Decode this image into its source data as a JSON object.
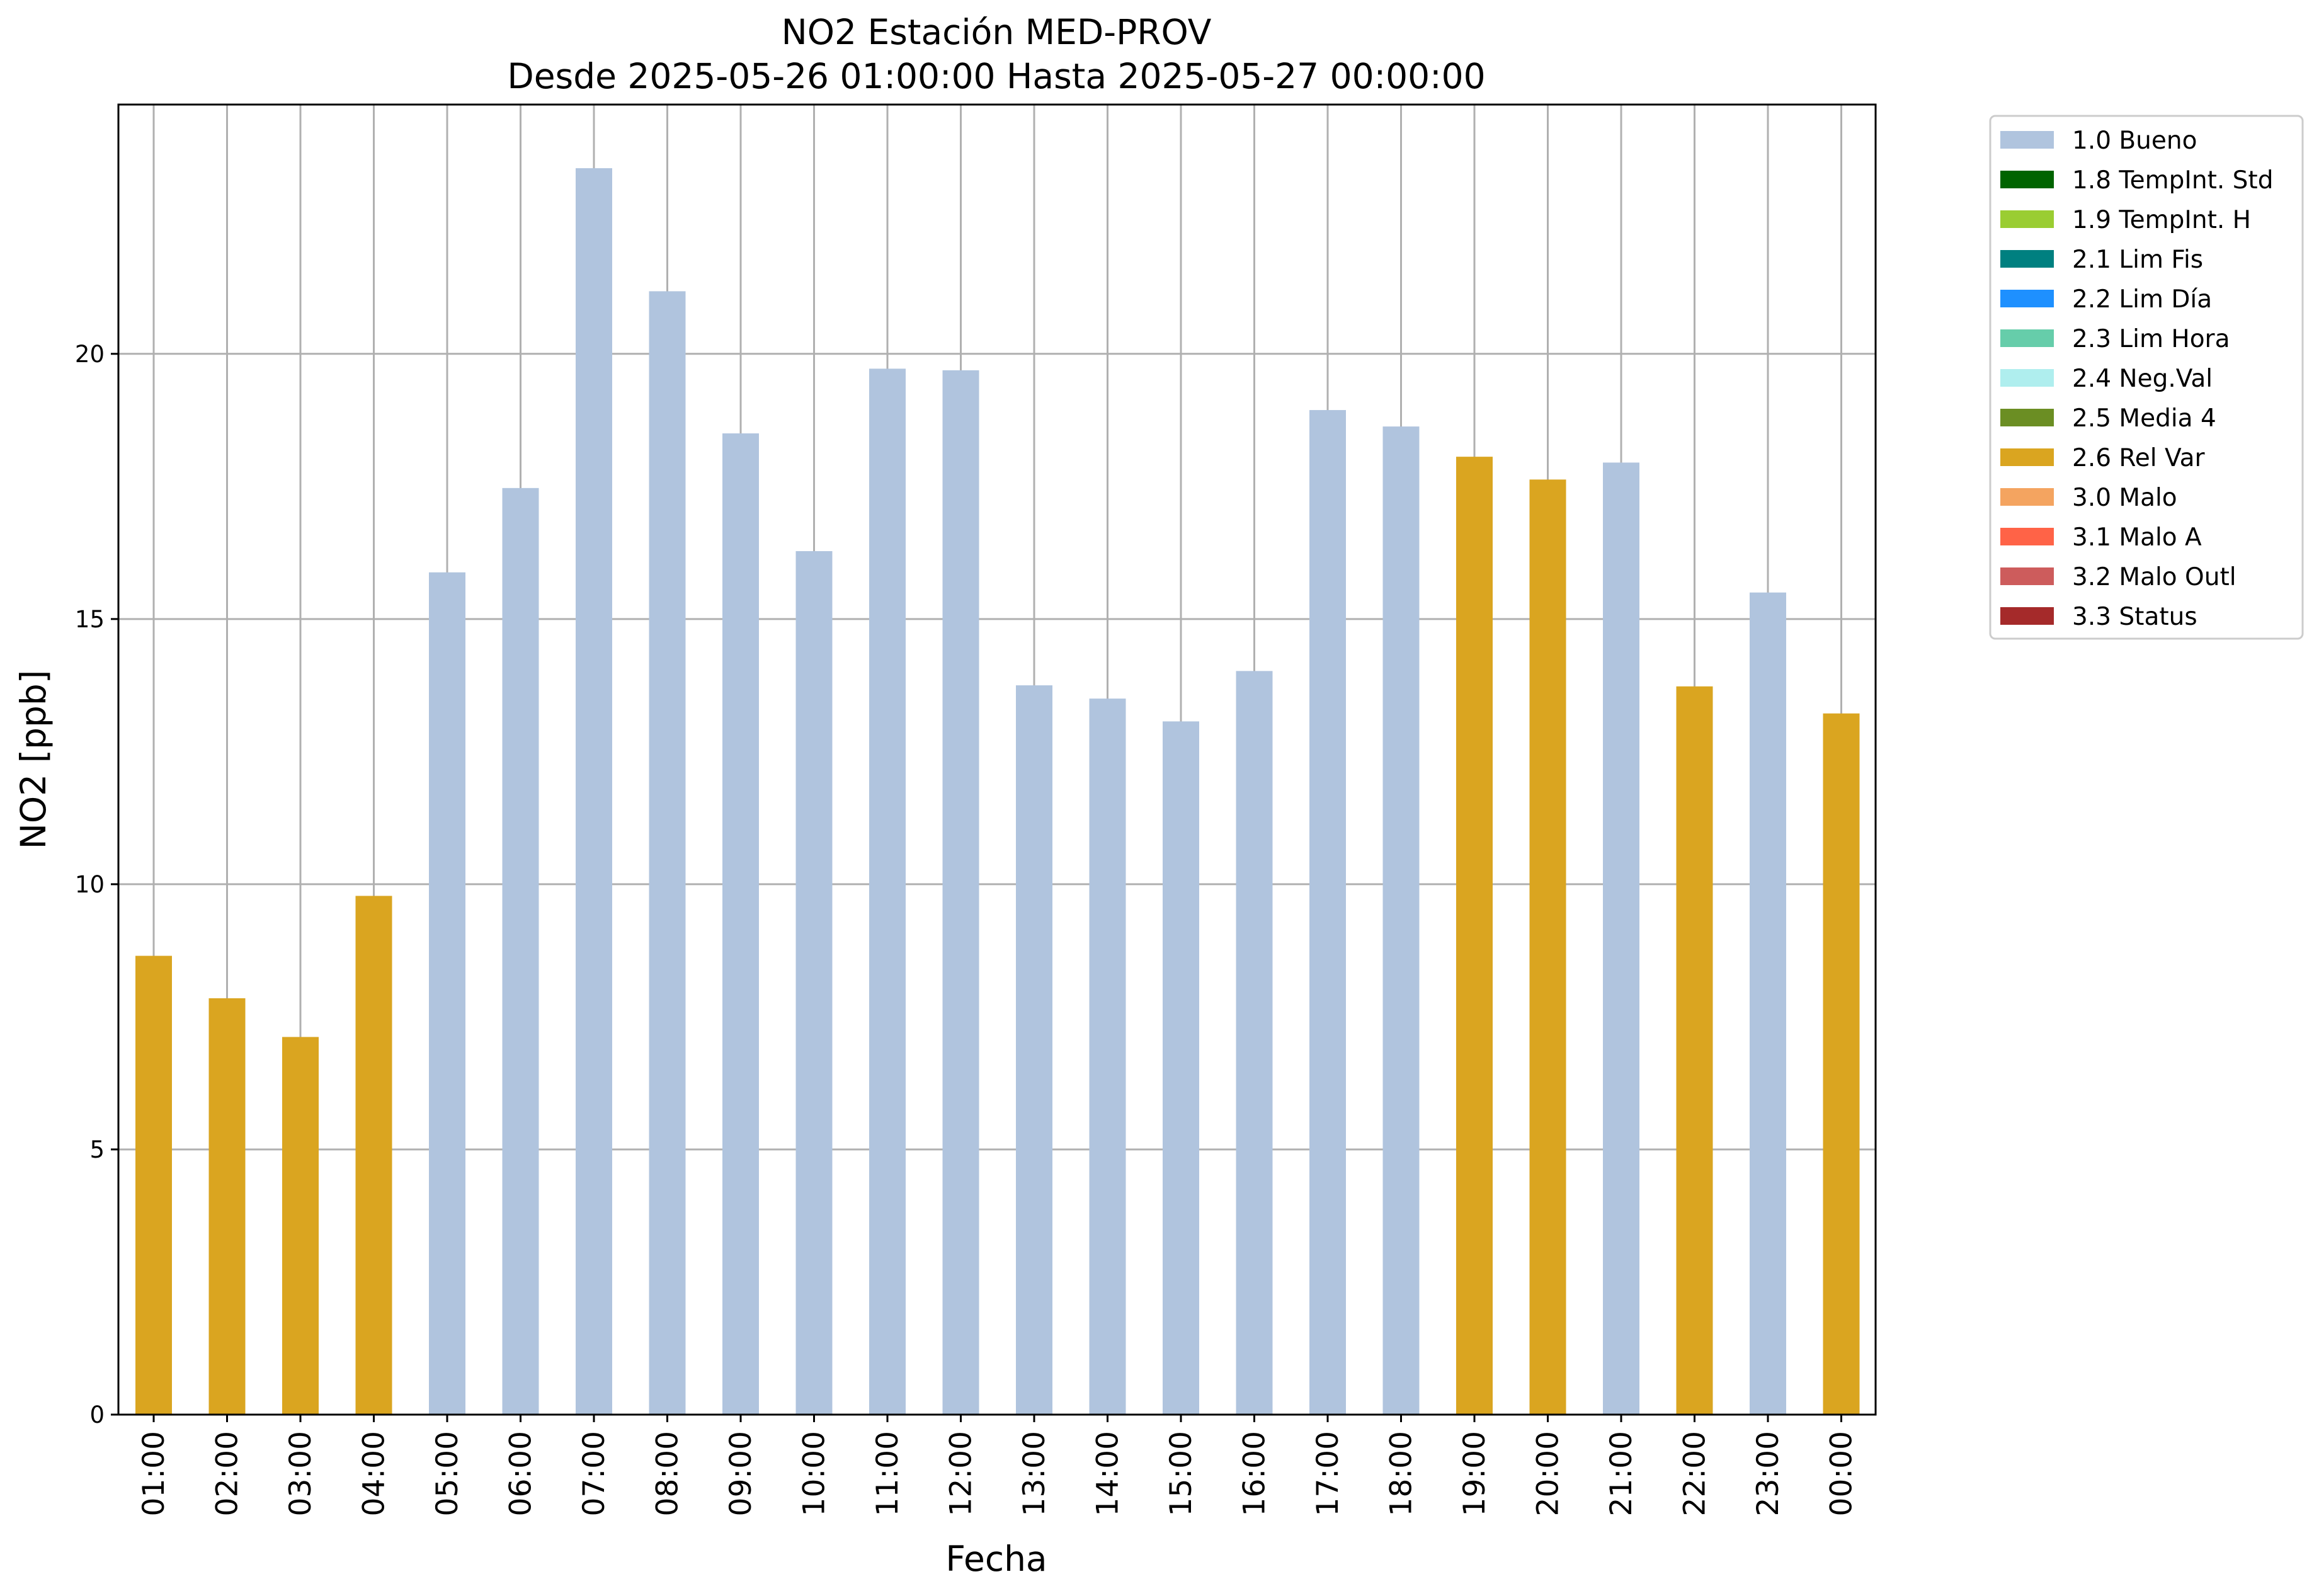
{
  "chart_data": {
    "type": "bar",
    "title": "NO2 Estación MED-PROV",
    "subtitle": "Desde 2025-05-26 01:00:00 Hasta 2025-05-27 00:00:00",
    "xlabel": "Fecha",
    "ylabel": "NO2 [ppb]",
    "ylim": [
      0,
      24.7
    ],
    "yticks": [
      0,
      5,
      10,
      15,
      20
    ],
    "grid": true,
    "legend_position": "outside-right",
    "categories": [
      "01:00",
      "02:00",
      "03:00",
      "04:00",
      "05:00",
      "06:00",
      "07:00",
      "08:00",
      "09:00",
      "10:00",
      "11:00",
      "12:00",
      "13:00",
      "14:00",
      "15:00",
      "16:00",
      "17:00",
      "18:00",
      "19:00",
      "20:00",
      "21:00",
      "22:00",
      "23:00",
      "00:00"
    ],
    "values": [
      8.65,
      7.85,
      7.12,
      9.78,
      15.88,
      17.47,
      23.5,
      21.18,
      18.5,
      16.28,
      19.72,
      19.69,
      13.75,
      13.5,
      13.07,
      14.02,
      18.94,
      18.63,
      18.06,
      17.63,
      17.95,
      13.73,
      15.5,
      13.22
    ],
    "flags": [
      "2.6 Rel Var",
      "2.6 Rel Var",
      "2.6 Rel Var",
      "2.6 Rel Var",
      "1.0 Bueno",
      "1.0 Bueno",
      "1.0 Bueno",
      "1.0 Bueno",
      "1.0 Bueno",
      "1.0 Bueno",
      "1.0 Bueno",
      "1.0 Bueno",
      "1.0 Bueno",
      "1.0 Bueno",
      "1.0 Bueno",
      "1.0 Bueno",
      "1.0 Bueno",
      "1.0 Bueno",
      "2.6 Rel Var",
      "2.6 Rel Var",
      "1.0 Bueno",
      "2.6 Rel Var",
      "1.0 Bueno",
      "2.6 Rel Var"
    ],
    "legend": [
      {
        "label": "1.0 Bueno",
        "color": "#b0c4de"
      },
      {
        "label": "1.8 TempInt. Std",
        "color": "#006400"
      },
      {
        "label": "1.9 TempInt. H",
        "color": "#9acd32"
      },
      {
        "label": "2.1 Lim Fis",
        "color": "#008080"
      },
      {
        "label": "2.2 Lim Día",
        "color": "#1e90ff"
      },
      {
        "label": "2.3 Lim Hora",
        "color": "#66cdaa"
      },
      {
        "label": "2.4 Neg.Val",
        "color": "#afeeee"
      },
      {
        "label": "2.5 Media 4",
        "color": "#6b8e23"
      },
      {
        "label": "2.6 Rel Var",
        "color": "#daa520"
      },
      {
        "label": "3.0 Malo",
        "color": "#f4a460"
      },
      {
        "label": "3.1 Malo A",
        "color": "#ff6347"
      },
      {
        "label": "3.2 Malo Outl",
        "color": "#cd5c5c"
      },
      {
        "label": "3.3 Status",
        "color": "#a52a2a"
      }
    ]
  }
}
